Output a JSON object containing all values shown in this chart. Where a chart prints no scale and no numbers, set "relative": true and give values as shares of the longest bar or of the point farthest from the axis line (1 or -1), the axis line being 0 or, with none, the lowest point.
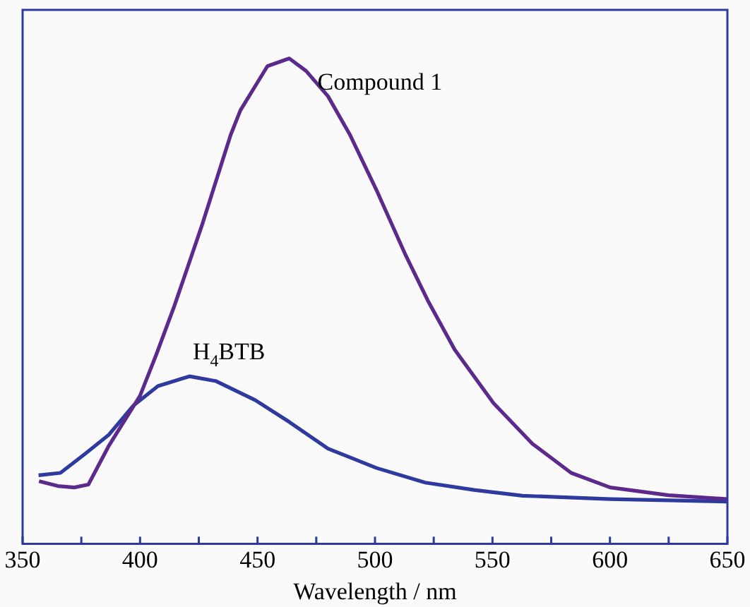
{
  "chart_data": {
    "type": "line",
    "xlabel": "Wavelength / nm",
    "relative": true,
    "xlim": [
      350,
      650
    ],
    "xticks": [
      350,
      {
        "value": 375,
        "label": null
      },
      400,
      {
        "value": 425,
        "label": null
      },
      450,
      {
        "value": 475,
        "label": null
      },
      500,
      {
        "value": 525,
        "label": null
      },
      550,
      {
        "value": 575,
        "label": null
      },
      600,
      {
        "value": 625,
        "label": null
      },
      650
    ],
    "grid": false,
    "legend": false,
    "marker": "none",
    "line_style": "solid",
    "series": [
      {
        "name": "Compound 1",
        "color": "#5b2a8c",
        "x": [
          357,
          365,
          372,
          378,
          386.6,
          400,
          407,
          414.6,
          426.2,
          438.6,
          442.7,
          454.2,
          463.5,
          470.7,
          480,
          489.3,
          500.7,
          513.1,
          522.5,
          533.9,
          550.4,
          567,
          583.5,
          600.1,
          624.9,
          650
        ],
        "values": [
          0.129,
          0.119,
          0.116,
          0.122,
          0.201,
          0.305,
          0.391,
          0.49,
          0.654,
          0.843,
          0.893,
          0.984,
          1,
          0.974,
          0.922,
          0.843,
          0.728,
          0.594,
          0.501,
          0.4,
          0.29,
          0.206,
          0.146,
          0.116,
          0.1,
          0.092
        ]
      },
      {
        "name": "H$_{4}$BTB",
        "color": "#2e3a9e",
        "x": [
          356.8,
          366.1,
          376.5,
          386.8,
          397.2,
          407.6,
          421,
          432.4,
          449,
          463.5,
          480,
          500.7,
          521.4,
          542.1,
          562.8,
          600.1,
          650
        ],
        "values": [
          0.141,
          0.146,
          0.185,
          0.225,
          0.285,
          0.325,
          0.345,
          0.335,
          0.296,
          0.251,
          0.196,
          0.156,
          0.126,
          0.111,
          0.099,
          0.092,
          0.087
        ]
      }
    ]
  }
}
